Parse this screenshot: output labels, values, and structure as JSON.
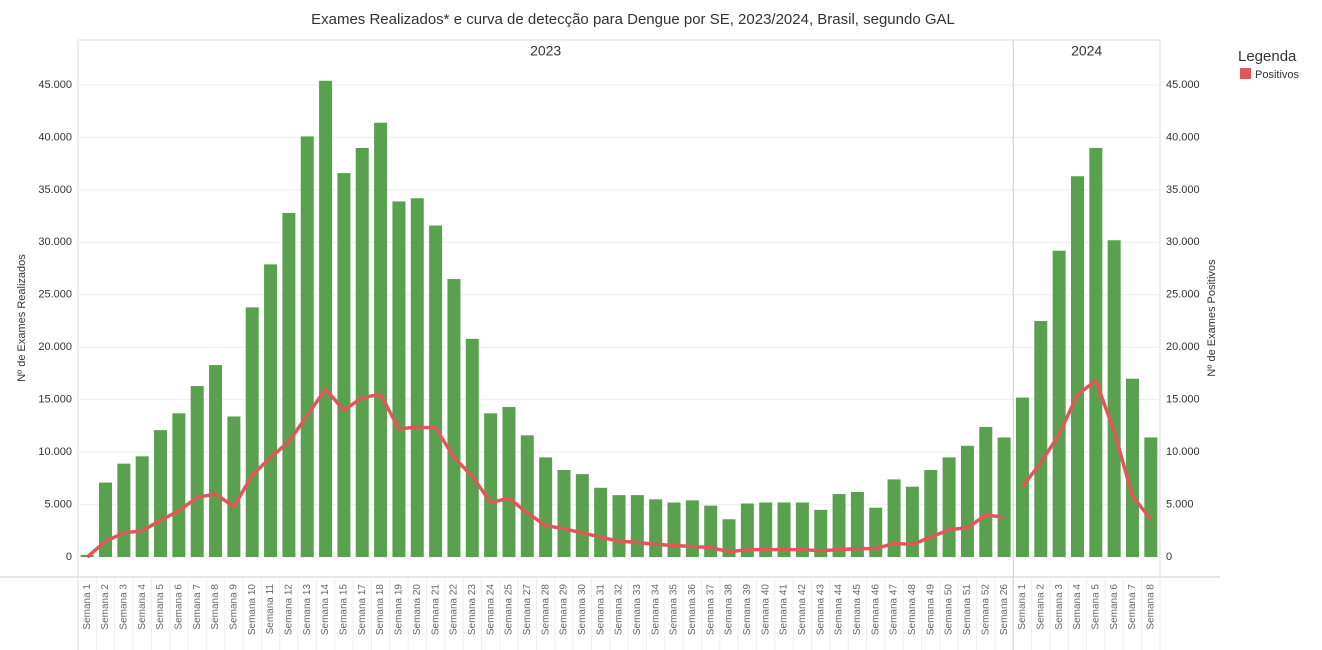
{
  "chart_data": {
    "type": "bar_line",
    "title": "Exames Realizados* e curva de detecção para Dengue por SE, 2023/2024, Brasil, segundo GAL",
    "y_label": "Nº de Exames Realizados",
    "y2_label": "Nº de Exames Positivos",
    "legend_title": "Legenda",
    "bar_color": "#59a14f",
    "series": [
      {
        "name": "Positivos",
        "color": "#e15759"
      }
    ],
    "ylim": [
      -2000,
      47000
    ],
    "yticks": [
      0,
      {
        "value": 5000,
        "label": "5.000"
      },
      {
        "value": 10000,
        "label": "10.000"
      },
      {
        "value": 15000,
        "label": "15.000"
      },
      {
        "value": 20000,
        "label": "20.000"
      },
      {
        "value": 25000,
        "label": "25.000"
      },
      {
        "value": 30000,
        "label": "30.000"
      },
      {
        "value": 35000,
        "label": "35.000"
      },
      {
        "value": 40000,
        "label": "40.000"
      },
      {
        "value": 45000,
        "label": "45.000"
      }
    ],
    "grid": true,
    "panels": [
      {
        "label": "2023",
        "categories": [
          "Semana 1",
          "Semana 2",
          "Semana 3",
          "Semana 4",
          "Semana 5",
          "Semana 6",
          "Semana 7",
          "Semana 8",
          "Semana 9",
          "Semana 10",
          "Semana 11",
          "Semana 12",
          "Semana 13",
          "Semana 14",
          "Semana 15",
          "Semana 17",
          "Semana 18",
          "Semana 19",
          "Semana 20",
          "Semana 21",
          "Semana 22",
          "Semana 23",
          "Semana 24",
          "Semana 25",
          "Semana 27",
          "Semana 28",
          "Semana 29",
          "Semana 30",
          "Semana 31",
          "Semana 32",
          "Semana 33",
          "Semana 34",
          "Semana 35",
          "Semana 36",
          "Semana 37",
          "Semana 38",
          "Semana 39",
          "Semana 40",
          "Semana 41",
          "Semana 42",
          "Semana 43",
          "Semana 44",
          "Semana 45",
          "Semana 46",
          "Semana 47",
          "Semana 48",
          "Semana 49",
          "Semana 50",
          "Semana 51",
          "Semana 52",
          "Semana 26"
        ],
        "bar_values": [
          200,
          7100,
          8900,
          9600,
          12100,
          13700,
          16300,
          18300,
          13400,
          23800,
          27900,
          32800,
          40100,
          45400,
          36600,
          39000,
          41400,
          33900,
          34200,
          31600,
          26500,
          20800,
          13700,
          14300,
          11600,
          9500,
          8300,
          7900,
          6600,
          5900,
          5900,
          5500,
          5200,
          5400,
          4900,
          3600,
          5100,
          5200,
          5200,
          5200,
          4500,
          6000,
          6200,
          4700,
          7400,
          6700,
          8300,
          9500,
          10600,
          12400,
          11400
        ],
        "line_values": [
          0,
          1500,
          2300,
          2500,
          3500,
          4400,
          5700,
          6000,
          4800,
          7800,
          9500,
          11000,
          13500,
          16000,
          14000,
          15200,
          15500,
          12200,
          12400,
          12300,
          9500,
          7700,
          5200,
          5600,
          4200,
          3000,
          2700,
          2300,
          1900,
          1500,
          1400,
          1200,
          1100,
          1000,
          900,
          500,
          700,
          700,
          700,
          700,
          600,
          700,
          800,
          800,
          1300,
          1200,
          1900,
          2600,
          2800,
          4000,
          3800
        ]
      },
      {
        "label": "2024",
        "categories": [
          "Semana 1",
          "Semana 2",
          "Semana 3",
          "Semana 4",
          "Semana 5",
          "Semana 6",
          "Semana 7",
          "Semana 8"
        ],
        "bar_values": [
          15200,
          22500,
          29200,
          36300,
          39000,
          30200,
          17000,
          11400
        ],
        "line_values": [
          6700,
          9000,
          11700,
          15500,
          16800,
          12000,
          5800,
          3600
        ]
      }
    ]
  }
}
